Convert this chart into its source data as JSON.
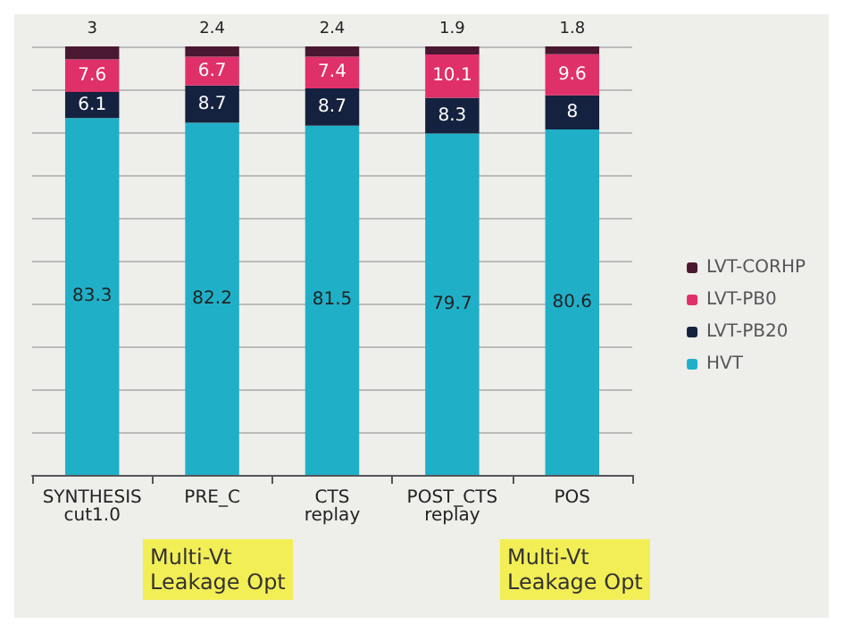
{
  "chart_data": {
    "type": "bar",
    "stacked": true,
    "categories": [
      "SYNTHESIS\ncut1.0",
      "PRE_C",
      "CTS\nreplay",
      "POST_CTS\nreplay",
      "POS"
    ],
    "series": [
      {
        "name": "HVT",
        "color": "#1fb0c8",
        "values": [
          83.3,
          82.2,
          81.5,
          79.7,
          80.6
        ]
      },
      {
        "name": "LVT-PB20",
        "color": "#15223f",
        "values": [
          6.1,
          8.7,
          8.7,
          8.3,
          8
        ]
      },
      {
        "name": "LVT-PB0",
        "color": "#e0306a",
        "values": [
          7.6,
          6.7,
          7.4,
          10.1,
          9.6
        ]
      },
      {
        "name": "LVT-CORHP",
        "color": "#4a1830",
        "values": [
          3,
          2.4,
          2.4,
          1.9,
          1.8
        ]
      }
    ],
    "ylim": [
      0,
      100
    ],
    "yticks": [
      {
        "value": 0,
        "label": null
      },
      {
        "value": 10,
        "label": null
      },
      {
        "value": 20,
        "label": null
      },
      {
        "value": 30,
        "label": null
      },
      {
        "value": 40,
        "label": null
      },
      {
        "value": 50,
        "label": null
      },
      {
        "value": 60,
        "label": null
      },
      {
        "value": 70,
        "label": null
      },
      {
        "value": 80,
        "label": null
      },
      {
        "value": 90,
        "label": null
      },
      {
        "value": 100,
        "label": null
      }
    ],
    "grid": "y",
    "legend": "right",
    "data_labels": true,
    "tick_labels": "x",
    "annotations": [
      "Multi-Vt\nLeakage Opt",
      "Multi-Vt\nLeakage Opt"
    ]
  }
}
